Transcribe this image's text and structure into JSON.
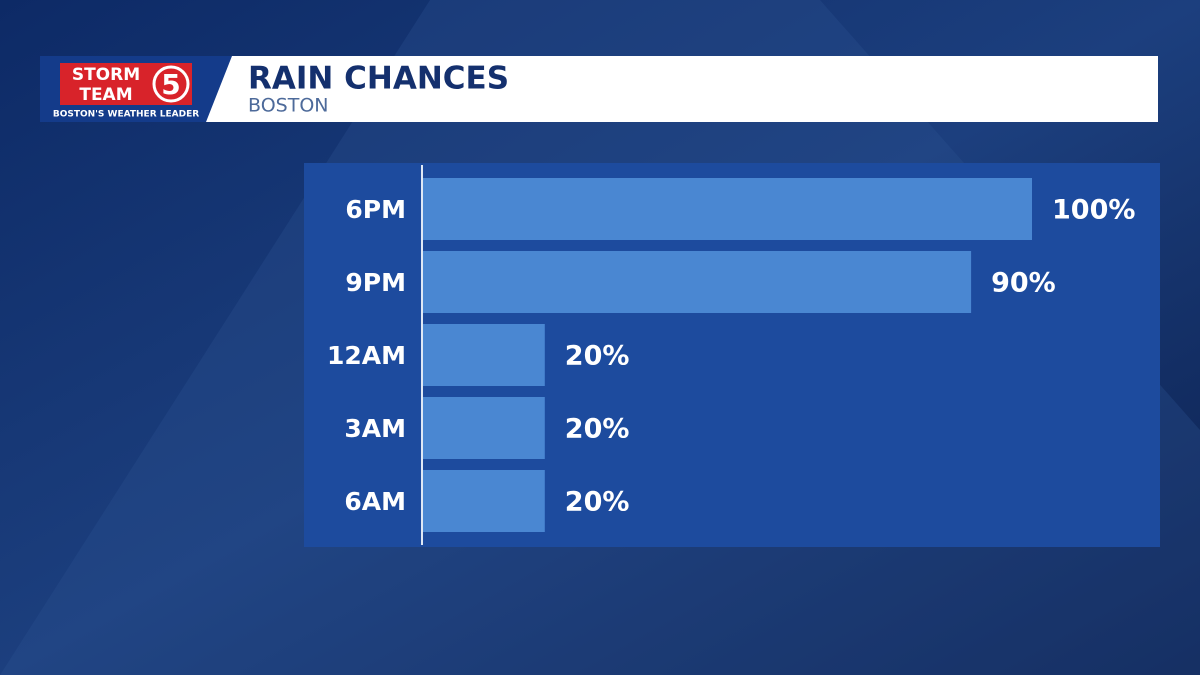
{
  "logo": {
    "line1": "STORM",
    "line2": "TEAM",
    "number": "5",
    "tagline": "BOSTON'S WEATHER LEADER"
  },
  "chart_data": {
    "type": "bar",
    "orientation": "horizontal",
    "title": "RAIN CHANCES",
    "subtitle": "BOSTON",
    "categories": [
      "6PM",
      "9PM",
      "12AM",
      "3AM",
      "6AM"
    ],
    "values": [
      100,
      90,
      20,
      20,
      20
    ],
    "value_labels": [
      "100%",
      "90%",
      "20%",
      "20%",
      "20%"
    ],
    "color": "#4a87d2",
    "xlim": [
      0,
      100
    ]
  }
}
